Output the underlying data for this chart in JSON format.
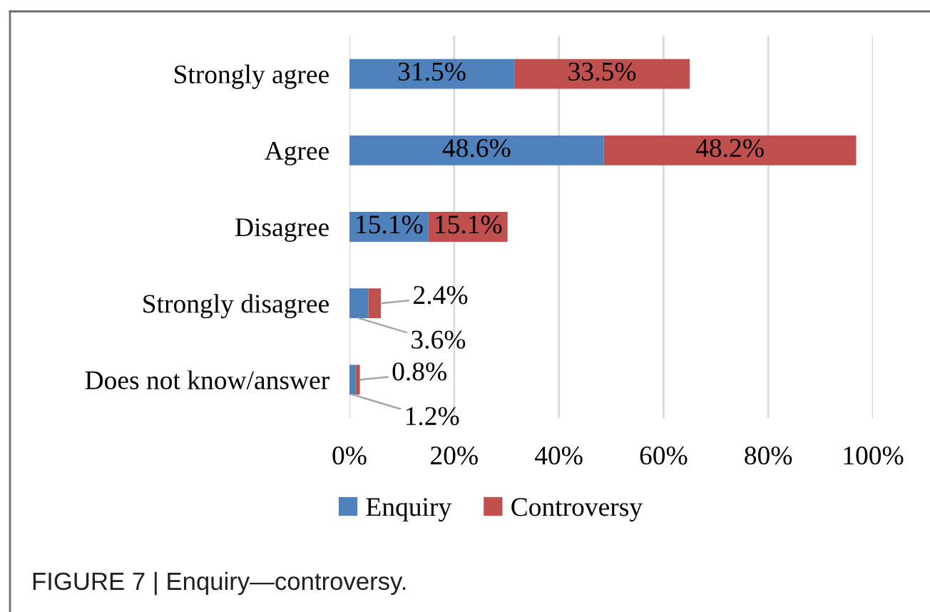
{
  "chart_data": {
    "type": "bar",
    "orientation": "horizontal",
    "stacked": true,
    "categories": [
      "Strongly agree",
      "Agree",
      "Disagree",
      "Strongly disagree",
      "Does not know/answer"
    ],
    "series": [
      {
        "name": "Enquiry",
        "color": "#4f81bd",
        "values": [
          31.5,
          48.6,
          15.1,
          3.6,
          1.2
        ],
        "value_labels": [
          "31.5%",
          "48.6%",
          "15.1%",
          "3.6%",
          "1.2%"
        ]
      },
      {
        "name": "Controversy",
        "color": "#c0504d",
        "values": [
          33.5,
          48.2,
          15.1,
          2.4,
          0.8
        ],
        "value_labels": [
          "33.5%",
          "48.2%",
          "15.1%",
          "2.4%",
          "0.8%"
        ]
      }
    ],
    "xlim": [
      0,
      100
    ],
    "xticks": [
      {
        "value": 0,
        "label": "0%"
      },
      {
        "value": 20,
        "label": "20%"
      },
      {
        "value": 40,
        "label": "40%"
      },
      {
        "value": 60,
        "label": "60%"
      },
      {
        "value": 80,
        "label": "80%"
      },
      {
        "value": 100,
        "label": "100%"
      }
    ],
    "grid": "x",
    "legend": "bottom",
    "annotations": [
      "FIGURE 7 | Enquiry—controversy."
    ]
  }
}
